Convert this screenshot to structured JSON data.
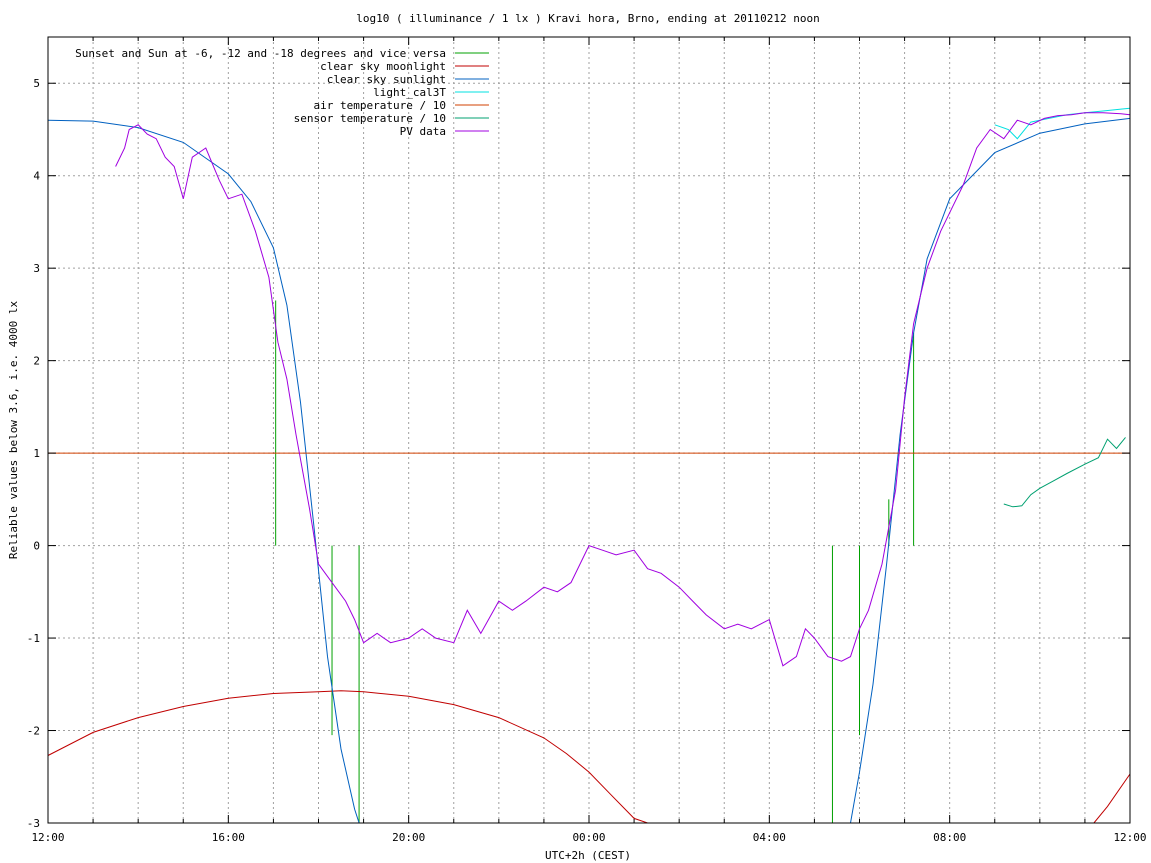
{
  "chart_data": {
    "type": "line",
    "title": "log10 ( illuminance / 1 lx ) Kravi hora, Brno, ending at 20110212 noon",
    "xlabel": "UTC+2h (CEST)",
    "ylabel": "Reliable values below 3.6, i.e. 4000 lx",
    "x_unit": "hour of day (continuous from 12:00 to next day 12:00, values 12..36)",
    "xlim": [
      12,
      36
    ],
    "ylim": [
      -3,
      5.5
    ],
    "x_ticks": [
      {
        "x": 12,
        "label": "12:00"
      },
      {
        "x": 16,
        "label": "16:00"
      },
      {
        "x": 20,
        "label": "20:00"
      },
      {
        "x": 24,
        "label": "00:00"
      },
      {
        "x": 28,
        "label": "04:00"
      },
      {
        "x": 32,
        "label": "08:00"
      },
      {
        "x": 36,
        "label": "12:00"
      }
    ],
    "y_ticks": [
      {
        "y": 5,
        "label": "5"
      },
      {
        "y": 4,
        "label": "4"
      },
      {
        "y": 3,
        "label": "3"
      },
      {
        "y": 2,
        "label": "2"
      },
      {
        "y": 1,
        "label": "1"
      },
      {
        "y": 0,
        "label": "0"
      },
      {
        "y": -1,
        "label": "-1"
      },
      {
        "y": -2,
        "label": "-2"
      },
      {
        "y": -3,
        "label": "-3"
      }
    ],
    "grid": true,
    "legend_position": "top-left",
    "series": [
      {
        "name": "Sunset and Sun at -6, -12 and -18 degrees and vice versa",
        "color": "#00a000",
        "style": "vertical-lines",
        "lines": [
          {
            "x": 17.05,
            "y0": 0,
            "y1": 2.65
          },
          {
            "x": 18.3,
            "y0": 0,
            "y1": -2.05
          },
          {
            "x": 18.9,
            "y0": 0,
            "y1": -3
          },
          {
            "x": 29.4,
            "y0": 0,
            "y1": -3
          },
          {
            "x": 30.0,
            "y0": 0,
            "y1": -2.05
          },
          {
            "x": 30.65,
            "y0": 0,
            "y1": 0.5
          },
          {
            "x": 31.2,
            "y0": 0,
            "y1": 2.3
          }
        ]
      },
      {
        "name": "clear sky moonlight",
        "color": "#c00000",
        "x": [
          12,
          13,
          14,
          15,
          16,
          17,
          18,
          18.5,
          19,
          20,
          21,
          22,
          23,
          23.5,
          24,
          24.5,
          25,
          25.3,
          35.2,
          35.5,
          36
        ],
        "y": [
          -2.27,
          -2.02,
          -1.86,
          -1.74,
          -1.65,
          -1.6,
          -1.58,
          -1.57,
          -1.58,
          -1.63,
          -1.72,
          -1.86,
          -2.08,
          -2.25,
          -2.45,
          -2.7,
          -2.95,
          -3.0,
          -3.0,
          -2.82,
          -2.47
        ]
      },
      {
        "name": "clear sky sunlight",
        "color": "#0060c0",
        "x": [
          12,
          13,
          14,
          15,
          16,
          16.5,
          17,
          17.3,
          17.6,
          17.9,
          18.2,
          18.5,
          18.8,
          18.9,
          29.8,
          30.0,
          30.3,
          30.6,
          30.9,
          31.2,
          31.5,
          32,
          33,
          34,
          35,
          36
        ],
        "y": [
          4.6,
          4.59,
          4.52,
          4.36,
          4.02,
          3.72,
          3.22,
          2.6,
          1.55,
          0.2,
          -1.2,
          -2.2,
          -2.85,
          -3.0,
          -3.0,
          -2.45,
          -1.5,
          -0.2,
          1.2,
          2.3,
          3.1,
          3.75,
          4.25,
          4.46,
          4.56,
          4.62
        ]
      },
      {
        "name": "light_cal3T",
        "color": "#00e0e0",
        "x": [
          33.0,
          33.3,
          33.5,
          33.8,
          34.2,
          34.6,
          35.0,
          35.4,
          35.8,
          36.0
        ],
        "y": [
          4.55,
          4.5,
          4.4,
          4.58,
          4.62,
          4.66,
          4.68,
          4.7,
          4.72,
          4.73
        ]
      },
      {
        "name": "air temperature / 10",
        "color": "#d04000",
        "x": [
          12,
          36
        ],
        "y": [
          1.0,
          1.0
        ]
      },
      {
        "name": "sensor temperature / 10",
        "color": "#00a070",
        "x": [
          33.2,
          33.4,
          33.6,
          33.8,
          34.0,
          34.3,
          34.6,
          35.0,
          35.3,
          35.5,
          35.7,
          35.9
        ],
        "y": [
          0.45,
          0.42,
          0.43,
          0.55,
          0.62,
          0.7,
          0.78,
          0.88,
          0.95,
          1.15,
          1.05,
          1.17
        ]
      },
      {
        "name": "PV data",
        "color": "#a000e0",
        "x": [
          13.5,
          13.7,
          13.8,
          14.0,
          14.2,
          14.4,
          14.6,
          14.8,
          15.0,
          15.2,
          15.5,
          15.8,
          16.0,
          16.3,
          16.6,
          16.9,
          17.1,
          17.3,
          17.5,
          17.8,
          18.0,
          18.3,
          18.6,
          18.8,
          19.0,
          19.3,
          19.6,
          20.0,
          20.3,
          20.6,
          21.0,
          21.3,
          21.6,
          22.0,
          22.3,
          22.6,
          23.0,
          23.3,
          23.6,
          24.0,
          24.3,
          24.6,
          25.0,
          25.3,
          25.6,
          26.0,
          26.3,
          26.6,
          27.0,
          27.3,
          27.6,
          28.0,
          28.3,
          28.6,
          28.8,
          29.0,
          29.3,
          29.6,
          29.8,
          30.0,
          30.2,
          30.5,
          30.8,
          31.0,
          31.2,
          31.5,
          31.8,
          32.0,
          32.3,
          32.6,
          32.9,
          33.2,
          33.5,
          33.8,
          34.1,
          34.4,
          34.7,
          35.0,
          35.4,
          35.8,
          36.0
        ],
        "y": [
          4.1,
          4.3,
          4.5,
          4.55,
          4.45,
          4.4,
          4.2,
          4.1,
          3.75,
          4.2,
          4.3,
          3.95,
          3.75,
          3.8,
          3.4,
          2.9,
          2.2,
          1.8,
          1.2,
          0.4,
          -0.2,
          -0.4,
          -0.6,
          -0.8,
          -1.05,
          -0.95,
          -1.05,
          -1.0,
          -0.9,
          -1.0,
          -1.05,
          -0.7,
          -0.95,
          -0.6,
          -0.7,
          -0.6,
          -0.45,
          -0.5,
          -0.4,
          0.0,
          -0.05,
          -0.1,
          -0.05,
          -0.25,
          -0.3,
          -0.45,
          -0.6,
          -0.75,
          -0.9,
          -0.85,
          -0.9,
          -0.8,
          -1.3,
          -1.2,
          -0.9,
          -1.0,
          -1.2,
          -1.25,
          -1.2,
          -0.9,
          -0.7,
          -0.2,
          0.6,
          1.6,
          2.4,
          3.0,
          3.4,
          3.6,
          3.9,
          4.3,
          4.5,
          4.4,
          4.6,
          4.55,
          4.62,
          4.65,
          4.66,
          4.68,
          4.68,
          4.67,
          4.66
        ]
      }
    ]
  }
}
